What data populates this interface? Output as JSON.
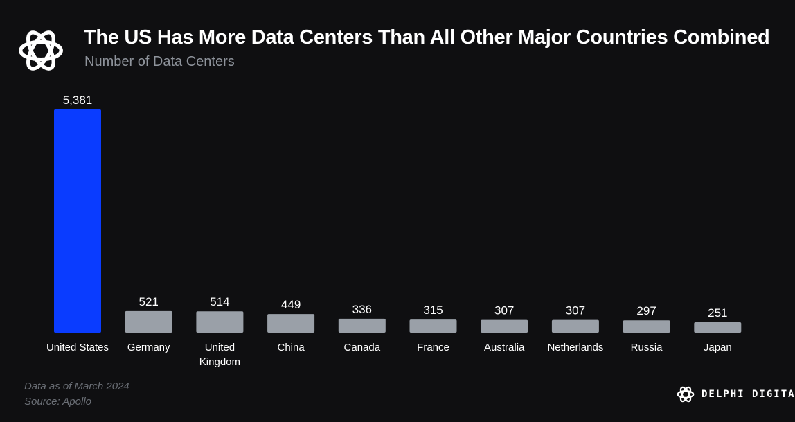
{
  "header": {
    "title": "The US Has More Data Centers Than All Other Major Countries Combined",
    "subtitle": "Number of Data Centers",
    "logo_icon": "delphi-knot-icon"
  },
  "chart_data": {
    "type": "bar",
    "categories": [
      "United States",
      "Germany",
      "United\nKingdom",
      "China",
      "Canada",
      "France",
      "Australia",
      "Netherlands",
      "Russia",
      "Japan"
    ],
    "values": [
      5381,
      521,
      514,
      449,
      336,
      315,
      307,
      307,
      297,
      251
    ],
    "value_labels": [
      "5,381",
      "521",
      "514",
      "449",
      "336",
      "315",
      "307",
      "307",
      "297",
      "251"
    ],
    "highlight_index": 0,
    "colors": {
      "highlight": "#0a3cff",
      "default": "#9aa0a8",
      "axis": "#8a8f96",
      "label": "#ffffff"
    },
    "title": "The US Has More Data Centers Than All Other Major Countries Combined",
    "xlabel": "",
    "ylabel": "Number of Data Centers",
    "ylim": [
      0,
      5381
    ],
    "grid": false,
    "legend": "none"
  },
  "footer": {
    "date_note": "Data as of March 2024",
    "source_note": "Source: Apollo",
    "brand_name": "DELPHI DIGITAL",
    "brand_icon": "delphi-knot-icon"
  }
}
